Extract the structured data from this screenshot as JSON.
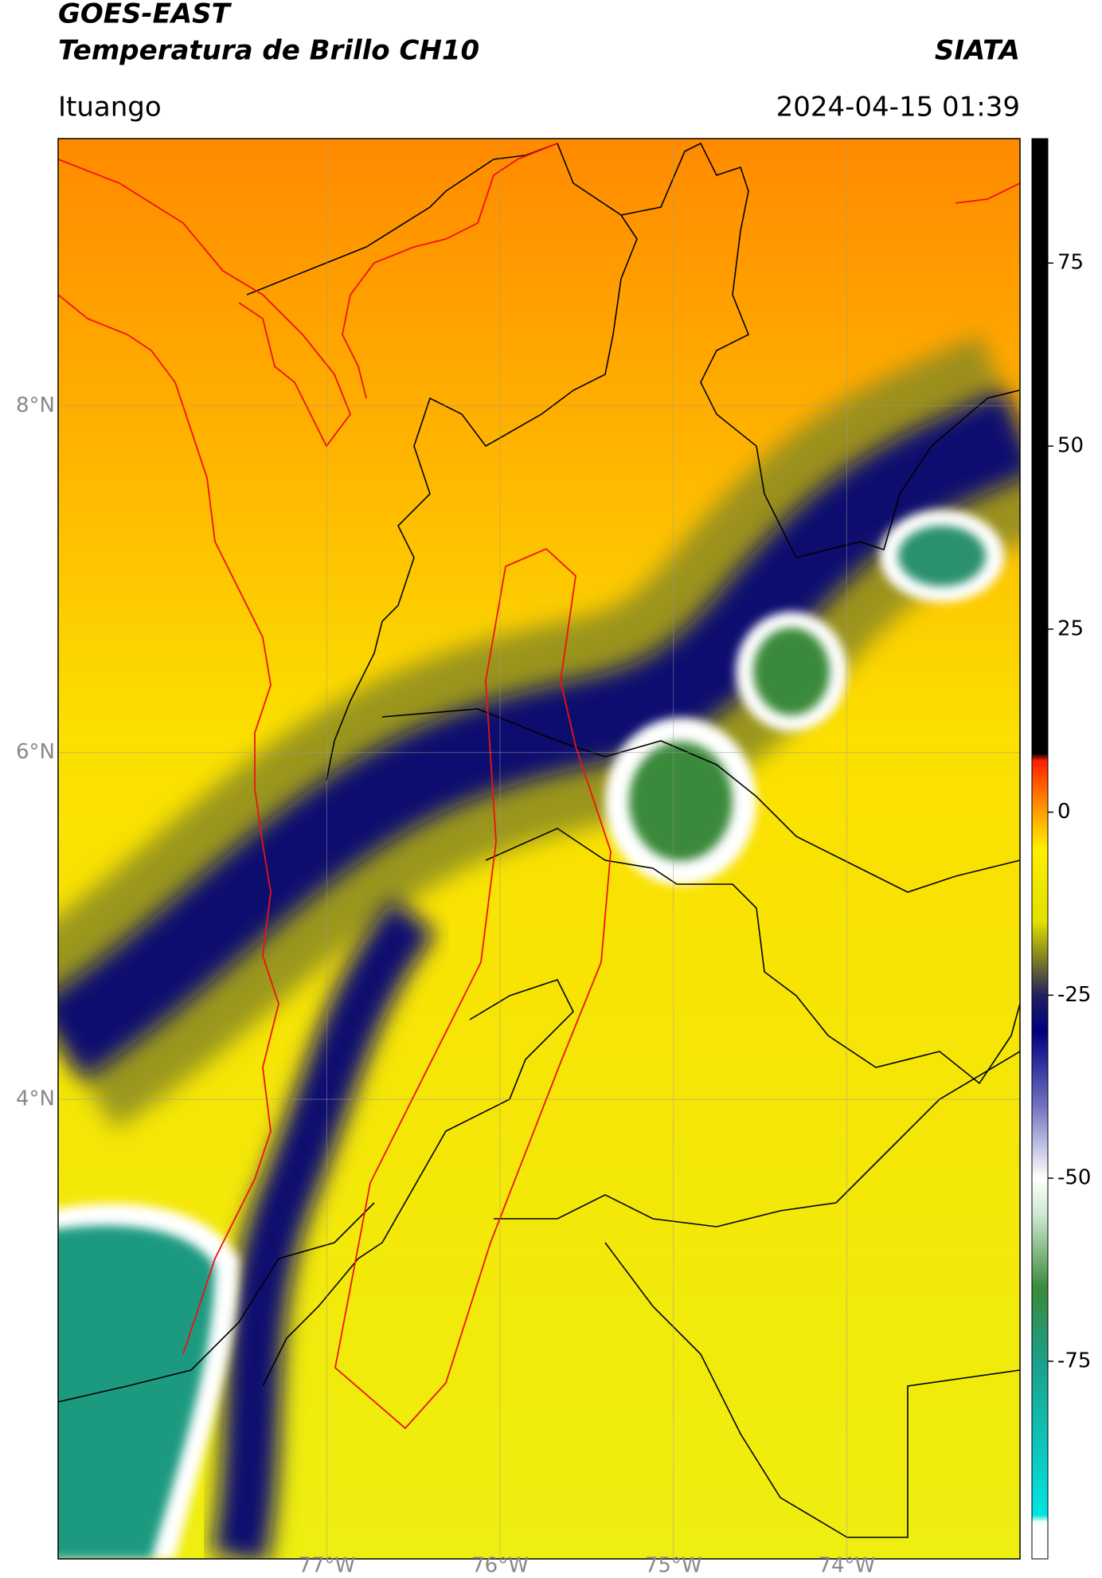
{
  "header": {
    "satellite": "GOES-EAST",
    "product": "Temperatura de Brillo CH10",
    "agency": "SIATA",
    "region": "Ituango",
    "timestamp": "2024-04-15 01:39"
  },
  "map": {
    "xlim": [
      -78.55,
      -73.0
    ],
    "ylim": [
      1.35,
      9.54
    ],
    "grid": true,
    "xticks": [
      {
        "value": -77,
        "label": "77°W"
      },
      {
        "value": -76,
        "label": "76°W"
      },
      {
        "value": -75,
        "label": "75°W"
      },
      {
        "value": -74,
        "label": "74°W"
      }
    ],
    "yticks": [
      {
        "value": 8,
        "label": "8°N"
      },
      {
        "value": 6,
        "label": "6°N"
      },
      {
        "value": 4,
        "label": "4°N"
      }
    ]
  },
  "colorbar": {
    "lim": [
      -102,
      92
    ],
    "ticks": [
      75,
      50,
      25,
      0,
      -25,
      -50,
      -75
    ],
    "colormap": [
      {
        "value": -102,
        "color": "#ffffff"
      },
      {
        "value": -97,
        "color": "#ffffff"
      },
      {
        "value": -96,
        "color": "#00e5e0"
      },
      {
        "value": -75,
        "color": "#1aa08a"
      },
      {
        "value": -65,
        "color": "#3a8a3a"
      },
      {
        "value": -55,
        "color": "#d0e8d0"
      },
      {
        "value": -50,
        "color": "#ffffff"
      },
      {
        "value": -40,
        "color": "#7070c0"
      },
      {
        "value": -30,
        "color": "#000080"
      },
      {
        "value": -25,
        "color": "#202060"
      },
      {
        "value": -20,
        "color": "#808020"
      },
      {
        "value": -15,
        "color": "#e0e000"
      },
      {
        "value": -5,
        "color": "#ffee00"
      },
      {
        "value": 0,
        "color": "#ffa000"
      },
      {
        "value": 7,
        "color": "#ff2000"
      },
      {
        "value": 8,
        "color": "#000000"
      },
      {
        "value": 92,
        "color": "#000000"
      }
    ]
  }
}
